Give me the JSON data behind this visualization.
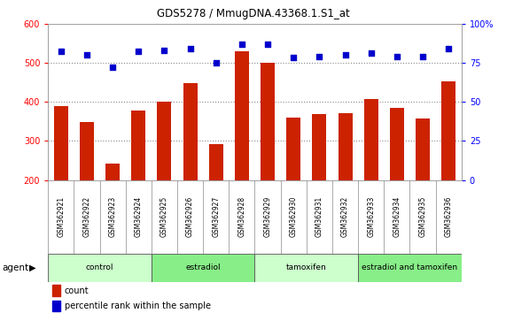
{
  "title": "GDS5278 / MmugDNA.43368.1.S1_at",
  "samples": [
    "GSM362921",
    "GSM362922",
    "GSM362923",
    "GSM362924",
    "GSM362925",
    "GSM362926",
    "GSM362927",
    "GSM362928",
    "GSM362929",
    "GSM362930",
    "GSM362931",
    "GSM362932",
    "GSM362933",
    "GSM362934",
    "GSM362935",
    "GSM362936"
  ],
  "counts": [
    388,
    348,
    242,
    378,
    400,
    448,
    292,
    530,
    500,
    360,
    368,
    370,
    408,
    385,
    358,
    452
  ],
  "percentiles": [
    82,
    80,
    72,
    82,
    83,
    84,
    75,
    87,
    87,
    78,
    79,
    80,
    81,
    79,
    79,
    84
  ],
  "groups": [
    {
      "label": "control",
      "start": 0,
      "end": 4,
      "color": "#ccffcc"
    },
    {
      "label": "estradiol",
      "start": 4,
      "end": 8,
      "color": "#88ee88"
    },
    {
      "label": "tamoxifen",
      "start": 8,
      "end": 12,
      "color": "#ccffcc"
    },
    {
      "label": "estradiol and tamoxifen",
      "start": 12,
      "end": 16,
      "color": "#88ee88"
    }
  ],
  "ylim_left": [
    200,
    600
  ],
  "ylim_right": [
    0,
    100
  ],
  "yticks_left": [
    200,
    300,
    400,
    500,
    600
  ],
  "yticks_right": [
    0,
    25,
    50,
    75,
    100
  ],
  "bar_color": "#cc2200",
  "dot_color": "#0000cc",
  "grid_color": "#888888",
  "bg_color": "#ffffff",
  "cell_bg": "#cccccc",
  "cell_border": "#888888"
}
